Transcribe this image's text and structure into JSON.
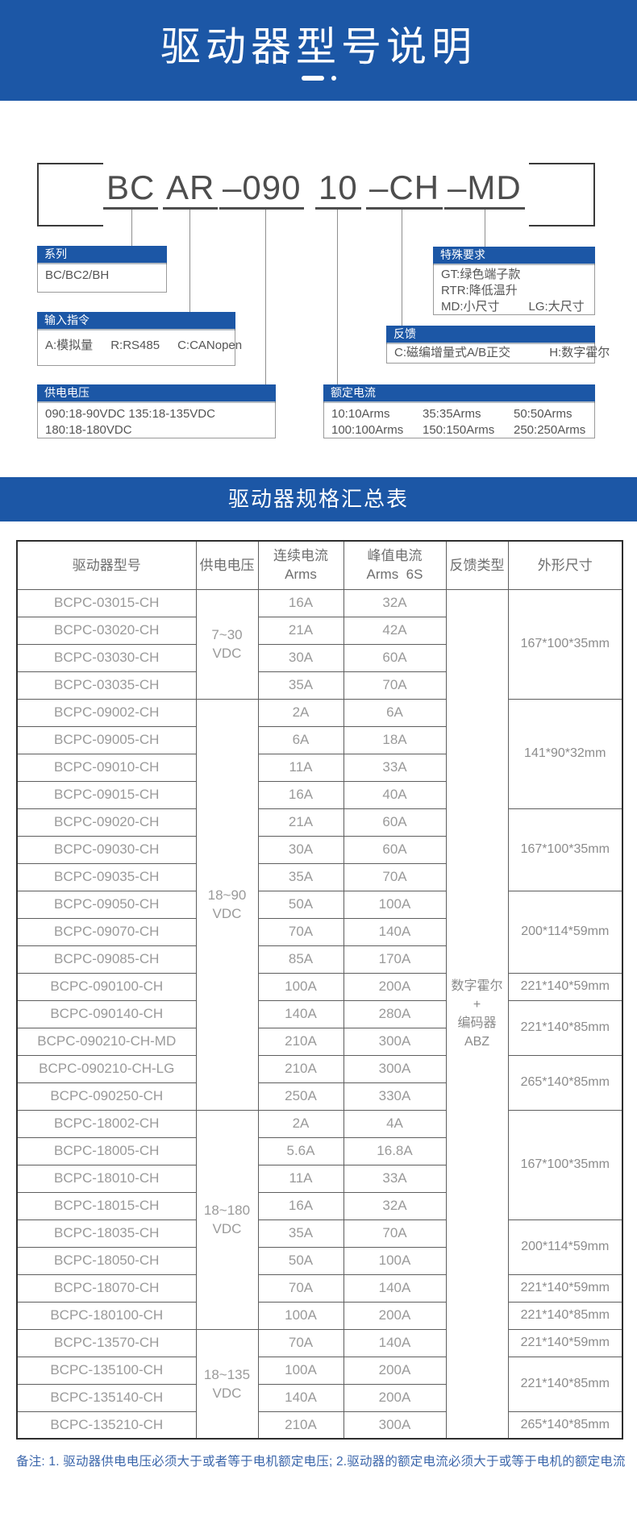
{
  "colors": {
    "accent": "#1c57a6",
    "note_text": "#3b66ab"
  },
  "header": {
    "title": "驱动器型号说明"
  },
  "model_code": {
    "segments": [
      "BC",
      "AR",
      "–090",
      "10",
      "–CH",
      "–MD"
    ]
  },
  "boxes": {
    "series": {
      "title": "系列",
      "rows": [
        [
          "BC/BC2/BH"
        ]
      ]
    },
    "input": {
      "title": "输入指令",
      "rows": [
        [
          "A:模拟量",
          "R:RS485",
          "C:CANopen"
        ]
      ]
    },
    "voltage": {
      "title": "供电电压",
      "rows": [
        [
          "090:18-90VDC 135:18-135VDC"
        ],
        [
          "180:18-180VDC"
        ]
      ]
    },
    "current": {
      "title": "额定电流",
      "rows": [
        [
          "10:10Arms",
          "35:35Arms",
          "50:50Arms"
        ],
        [
          "100:100Arms",
          "150:150Arms",
          "250:250Arms"
        ]
      ]
    },
    "feedback": {
      "title": "反馈",
      "rows": [
        [
          "C:磁编增量式A/B正交",
          "H:数字霍尔"
        ]
      ]
    },
    "special": {
      "title": "特殊要求",
      "rows": [
        [
          "GT:绿色端子款"
        ],
        [
          "RTR:降低温升"
        ],
        [
          "MD:小尺寸",
          "LG:大尺寸"
        ]
      ]
    }
  },
  "summary": {
    "band_title": "驱动器规格汇总表"
  },
  "table": {
    "headers": [
      {
        "lines": [
          "驱动器型号"
        ]
      },
      {
        "lines": [
          "供电电压"
        ]
      },
      {
        "lines": [
          "连续电流",
          "Arms"
        ]
      },
      {
        "lines": [
          "峰值电流",
          "Arms  6S"
        ]
      },
      {
        "lines": [
          "反馈类型"
        ]
      },
      {
        "lines": [
          "外形尺寸"
        ]
      }
    ],
    "feedback_lines": [
      "数字霍尔",
      "+",
      "编码器",
      "ABZ"
    ],
    "voltage_groups": [
      {
        "label": [
          "7~30",
          "VDC"
        ],
        "rows": 4
      },
      {
        "label": [
          "18~90",
          "VDC"
        ],
        "rows": 15
      },
      {
        "label": [
          "18~180",
          "VDC"
        ],
        "rows": 8
      },
      {
        "label": [
          "18~135",
          "VDC"
        ],
        "rows": 4
      }
    ],
    "dim_spans": [
      {
        "label": "167*100*35mm",
        "rows": 4
      },
      {
        "label": "141*90*32mm",
        "rows": 4
      },
      {
        "label": "167*100*35mm",
        "rows": 3
      },
      {
        "label": "200*114*59mm",
        "rows": 3
      },
      {
        "label": "221*140*59mm",
        "rows": 1
      },
      {
        "label": "221*140*85mm",
        "rows": 2
      },
      {
        "label": "265*140*85mm",
        "rows": 2
      },
      {
        "label": "167*100*35mm",
        "rows": 4
      },
      {
        "label": "200*114*59mm",
        "rows": 2
      },
      {
        "label": "221*140*59mm",
        "rows": 1
      },
      {
        "label": "221*140*85mm",
        "rows": 1
      },
      {
        "label": "221*140*59mm",
        "rows": 1
      },
      {
        "label": "221*140*85mm",
        "rows": 2
      },
      {
        "label": "265*140*85mm",
        "rows": 1
      }
    ],
    "rows": [
      {
        "model": "BCPC-03015-CH",
        "cont": "16A",
        "peak": "32A"
      },
      {
        "model": "BCPC-03020-CH",
        "cont": "21A",
        "peak": "42A"
      },
      {
        "model": "BCPC-03030-CH",
        "cont": "30A",
        "peak": "60A"
      },
      {
        "model": "BCPC-03035-CH",
        "cont": "35A",
        "peak": "70A"
      },
      {
        "model": "BCPC-09002-CH",
        "cont": "2A",
        "peak": "6A"
      },
      {
        "model": "BCPC-09005-CH",
        "cont": "6A",
        "peak": "18A"
      },
      {
        "model": "BCPC-09010-CH",
        "cont": "11A",
        "peak": "33A"
      },
      {
        "model": "BCPC-09015-CH",
        "cont": "16A",
        "peak": "40A"
      },
      {
        "model": "BCPC-09020-CH",
        "cont": "21A",
        "peak": "60A"
      },
      {
        "model": "BCPC-09030-CH",
        "cont": "30A",
        "peak": "60A"
      },
      {
        "model": "BCPC-09035-CH",
        "cont": "35A",
        "peak": "70A"
      },
      {
        "model": "BCPC-09050-CH",
        "cont": "50A",
        "peak": "100A"
      },
      {
        "model": "BCPC-09070-CH",
        "cont": "70A",
        "peak": "140A"
      },
      {
        "model": "BCPC-09085-CH",
        "cont": "85A",
        "peak": "170A"
      },
      {
        "model": "BCPC-090100-CH",
        "cont": "100A",
        "peak": "200A"
      },
      {
        "model": "BCPC-090140-CH",
        "cont": "140A",
        "peak": "280A"
      },
      {
        "model": "BCPC-090210-CH-MD",
        "cont": "210A",
        "peak": "300A"
      },
      {
        "model": "BCPC-090210-CH-LG",
        "cont": "210A",
        "peak": "300A"
      },
      {
        "model": "BCPC-090250-CH",
        "cont": "250A",
        "peak": "330A"
      },
      {
        "model": "BCPC-18002-CH",
        "cont": "2A",
        "peak": "4A"
      },
      {
        "model": "BCPC-18005-CH",
        "cont": "5.6A",
        "peak": "16.8A"
      },
      {
        "model": "BCPC-18010-CH",
        "cont": "11A",
        "peak": "33A"
      },
      {
        "model": "BCPC-18015-CH",
        "cont": "16A",
        "peak": "32A"
      },
      {
        "model": "BCPC-18035-CH",
        "cont": "35A",
        "peak": "70A"
      },
      {
        "model": "BCPC-18050-CH",
        "cont": "50A",
        "peak": "100A"
      },
      {
        "model": "BCPC-18070-CH",
        "cont": "70A",
        "peak": "140A"
      },
      {
        "model": "BCPC-180100-CH",
        "cont": "100A",
        "peak": "200A"
      },
      {
        "model": "BCPC-13570-CH",
        "cont": "70A",
        "peak": "140A"
      },
      {
        "model": "BCPC-135100-CH",
        "cont": "100A",
        "peak": "200A"
      },
      {
        "model": "BCPC-135140-CH",
        "cont": "140A",
        "peak": "200A"
      },
      {
        "model": "BCPC-135210-CH",
        "cont": "210A",
        "peak": "300A"
      }
    ]
  },
  "note": {
    "text": "备注: 1. 驱动器供电电压必须大于或者等于电机额定电压; 2.驱动器的额定电流必须大于或等于电机的额定电流"
  }
}
